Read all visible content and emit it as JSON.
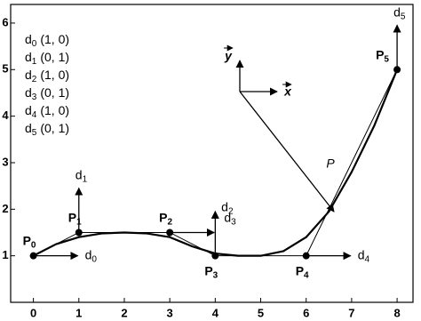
{
  "chart_data": {
    "type": "line",
    "xlim": [
      -0.5,
      8.35
    ],
    "ylim": [
      0,
      6.4
    ],
    "xticks": [
      0,
      1,
      2,
      3,
      4,
      5,
      6,
      7,
      8
    ],
    "yticks": [
      1,
      2,
      3,
      4,
      5,
      6
    ],
    "curve": {
      "x": [
        0,
        0.5,
        1,
        1.5,
        2,
        2.5,
        3,
        3.5,
        4,
        4.5,
        5,
        5.5,
        6,
        6.5,
        7,
        7.5,
        8
      ],
      "values": [
        1,
        1.25,
        1.4,
        1.48,
        1.5,
        1.48,
        1.4,
        1.2,
        1.05,
        1.0,
        1.0,
        1.1,
        1.4,
        1.95,
        2.8,
        3.8,
        5
      ]
    },
    "control_points": [
      {
        "label": "P",
        "subscript": "0",
        "x": 0,
        "y": 1,
        "direction": "d",
        "direction_subscript": "0",
        "vector": [
          1,
          0
        ],
        "vector_label": "(1, 0)"
      },
      {
        "label": "P",
        "subscript": "1",
        "x": 1,
        "y": 1.5,
        "direction": "d",
        "direction_subscript": "1",
        "vector": [
          0,
          1
        ],
        "vector_label": "(0, 1)"
      },
      {
        "label": "P",
        "subscript": "2",
        "x": 3,
        "y": 1.5,
        "direction": "d",
        "direction_subscript": "2",
        "vector": [
          1,
          0
        ],
        "vector_label": "(1, 0)"
      },
      {
        "label": "P",
        "subscript": "3",
        "x": 4,
        "y": 1,
        "direction": "d",
        "direction_subscript": "3",
        "vector": [
          0,
          1
        ],
        "vector_label": "(0, 1)"
      },
      {
        "label": "P",
        "subscript": "4",
        "x": 6,
        "y": 1,
        "direction": "d",
        "direction_subscript": "4",
        "vector": [
          1,
          0
        ],
        "vector_label": "(1, 0)"
      },
      {
        "label": "P",
        "subscript": "5",
        "x": 8,
        "y": 5,
        "direction": "d",
        "direction_subscript": "5",
        "vector": [
          0,
          1
        ],
        "vector_label": "(0, 1)"
      }
    ],
    "frame": {
      "x_label": "x",
      "y_label": "y",
      "point_label": "P"
    }
  }
}
